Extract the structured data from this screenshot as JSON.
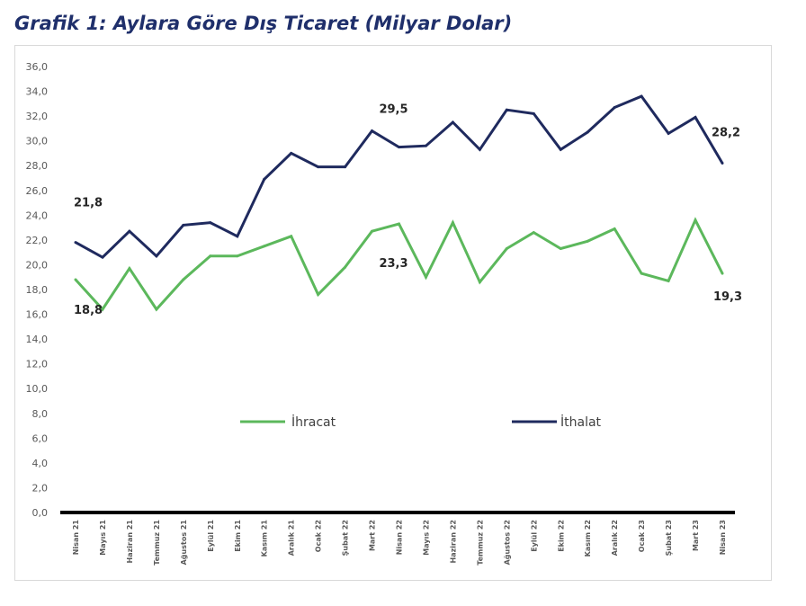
{
  "title": "Grafik 1: Aylara Göre Dış Ticaret (Milyar Dolar)",
  "chart_data": {
    "type": "line",
    "title": "Grafik 1: Aylara Göre Dış Ticaret (Milyar Dolar)",
    "xlabel": "",
    "ylabel": "",
    "ylim": [
      0,
      36
    ],
    "y_ticks": [
      "0,0",
      "2,0",
      "4,0",
      "6,0",
      "8,0",
      "10,0",
      "12,0",
      "14,0",
      "16,0",
      "18,0",
      "20,0",
      "22,0",
      "24,0",
      "26,0",
      "28,0",
      "30,0",
      "32,0",
      "34,0",
      "36,0"
    ],
    "categories": [
      "Nisan 21",
      "Mayıs 21",
      "Haziran 21",
      "Temmuz 21",
      "Ağustos 21",
      "Eylül 21",
      "Ekim 21",
      "Kasım 21",
      "Aralık 21",
      "Ocak 22",
      "Şubat 22",
      "Mart 22",
      "Nisan 22",
      "Mayıs 22",
      "Haziran 22",
      "Temmuz 22",
      "Ağustos 22",
      "Eylül 22",
      "Ekim 22",
      "Kasım 22",
      "Aralık 22",
      "Ocak 23",
      "Şubat 23",
      "Mart 23",
      "Nisan 23"
    ],
    "grid": false,
    "legend_position": "inside-middle",
    "series": [
      {
        "name": "İhracat",
        "color": "#5cb85c",
        "values": [
          18.8,
          16.4,
          19.7,
          16.4,
          18.8,
          20.7,
          20.7,
          21.5,
          22.3,
          17.6,
          19.8,
          22.7,
          23.3,
          19.0,
          23.4,
          18.6,
          21.3,
          22.6,
          21.3,
          21.9,
          22.9,
          19.3,
          18.7,
          23.6,
          19.3
        ]
      },
      {
        "name": "İthalat",
        "color": "#1f2a5e",
        "values": [
          21.8,
          20.6,
          22.7,
          20.7,
          23.2,
          23.4,
          22.3,
          26.9,
          29.0,
          27.9,
          27.9,
          30.8,
          29.5,
          29.6,
          31.5,
          29.3,
          32.5,
          32.2,
          29.3,
          30.7,
          32.7,
          33.6,
          30.6,
          31.9,
          28.2
        ]
      }
    ],
    "annotations": [
      {
        "series": 1,
        "index": 0,
        "text": "21,8"
      },
      {
        "series": 0,
        "index": 0,
        "text": "18,8"
      },
      {
        "series": 1,
        "index": 12,
        "text": "29,5"
      },
      {
        "series": 0,
        "index": 12,
        "text": "23,3"
      },
      {
        "series": 1,
        "index": 24,
        "text": "28,2"
      },
      {
        "series": 0,
        "index": 24,
        "text": "19,3"
      }
    ]
  }
}
